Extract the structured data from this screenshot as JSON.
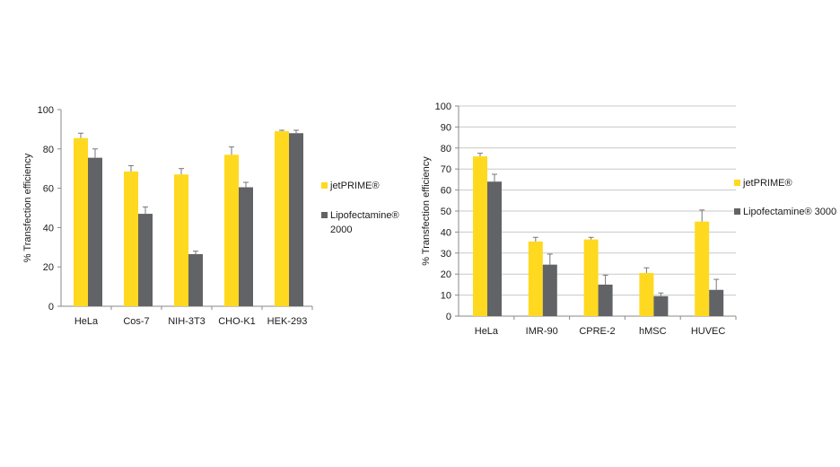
{
  "colors": {
    "jetprime": "#FFD91F",
    "lipofectamine": "#626366",
    "grid": "#c8c8c8",
    "axis": "#8a8a8a",
    "errorbar": "#777777"
  },
  "chart_data": [
    {
      "type": "bar",
      "ylabel": "% Transfection efficiency",
      "ylim": [
        0,
        100
      ],
      "yticks": [
        0,
        20,
        40,
        60,
        80,
        100
      ],
      "grid": false,
      "legend_position": "right",
      "categories": [
        "HeLa",
        "Cos-7",
        "NIH-3T3",
        "CHO-K1",
        "HEK-293"
      ],
      "legend": {
        "line1": "jetPRIME®",
        "line2": "Lipofectamine®",
        "line3": "2000"
      },
      "series": [
        {
          "name": "jetPRIME®",
          "values": [
            85.5,
            68.5,
            67,
            77,
            89
          ],
          "errors": [
            2.5,
            3,
            3,
            4,
            0.5
          ]
        },
        {
          "name": "Lipofectamine® 2000",
          "values": [
            75.5,
            47,
            26.5,
            60.5,
            88
          ],
          "errors": [
            4.5,
            3.5,
            1.5,
            2.5,
            1.5
          ]
        }
      ]
    },
    {
      "type": "bar",
      "ylabel": "% Transfection efficiency",
      "ylim": [
        0,
        100
      ],
      "yticks": [
        0,
        10,
        20,
        30,
        40,
        50,
        60,
        70,
        80,
        90,
        100
      ],
      "grid": true,
      "legend_position": "right",
      "categories": [
        "HeLa",
        "IMR-90",
        "CPRE-2",
        "hMSC",
        "HUVEC"
      ],
      "legend": {
        "line1": "jetPRIME®",
        "line2": "Lipofectamine® 3000"
      },
      "series": [
        {
          "name": "jetPRIME®",
          "values": [
            76,
            35.5,
            36.5,
            20.5,
            45
          ],
          "errors": [
            1.5,
            2,
            1,
            2.5,
            5.5
          ]
        },
        {
          "name": "Lipofectamine® 3000",
          "values": [
            64,
            24.5,
            15,
            9.5,
            12.5
          ],
          "errors": [
            3.5,
            5,
            4.5,
            1.5,
            5
          ]
        }
      ]
    }
  ]
}
